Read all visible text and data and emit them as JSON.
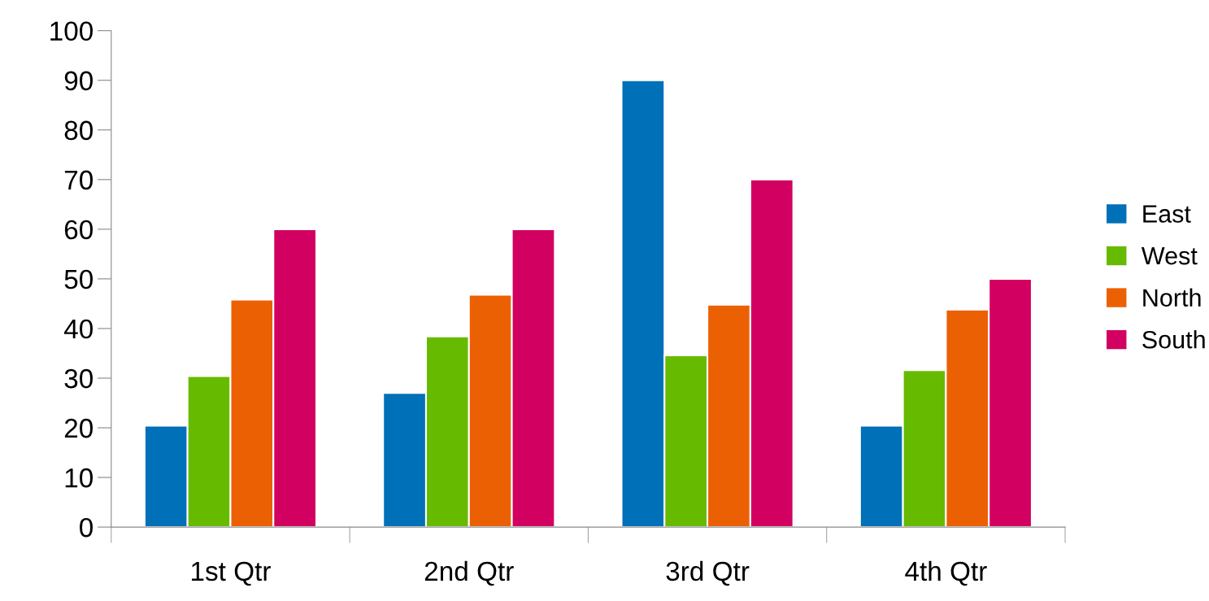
{
  "chart_data": {
    "type": "bar",
    "categories": [
      "1st Qtr",
      "2nd Qtr",
      "3rd Qtr",
      "4th Qtr"
    ],
    "series": [
      {
        "name": "East",
        "color": "#0070b8",
        "values": [
          20.4,
          27,
          90,
          20.4
        ]
      },
      {
        "name": "West",
        "color": "#66bb00",
        "values": [
          30.4,
          38.4,
          34.6,
          31.6
        ]
      },
      {
        "name": "North",
        "color": "#ec6004",
        "values": [
          45.8,
          46.8,
          44.8,
          43.8
        ]
      },
      {
        "name": "South",
        "color": "#d20060",
        "values": [
          60,
          60,
          70,
          50
        ]
      }
    ],
    "ylim": [
      0,
      100
    ],
    "yticks": [
      0,
      10,
      20,
      30,
      40,
      50,
      60,
      70,
      80,
      90,
      100
    ],
    "grid": false,
    "legend": "right"
  }
}
